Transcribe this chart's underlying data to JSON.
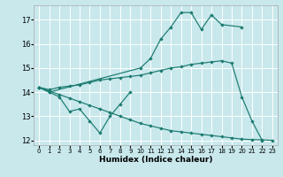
{
  "xlabel": "Humidex (Indice chaleur)",
  "background_color": "#c8e8ec",
  "grid_color": "#ffffff",
  "line_color": "#1a7a6e",
  "xlim": [
    -0.5,
    23.5
  ],
  "ylim": [
    11.8,
    17.6
  ],
  "yticks": [
    12,
    13,
    14,
    15,
    16,
    17
  ],
  "xticks": [
    0,
    1,
    2,
    3,
    4,
    5,
    6,
    7,
    8,
    9,
    10,
    11,
    12,
    13,
    14,
    15,
    16,
    17,
    18,
    19,
    20,
    21,
    22,
    23
  ],
  "s1_x": [
    0,
    1,
    2,
    3,
    4,
    5,
    6,
    7,
    8,
    9
  ],
  "s1_y": [
    14.2,
    14.0,
    13.8,
    13.2,
    13.3,
    12.8,
    12.3,
    13.0,
    13.5,
    14.0
  ],
  "s2_x": [
    0,
    1,
    10,
    11,
    12,
    13,
    14,
    15,
    16,
    17,
    18,
    20
  ],
  "s2_y": [
    14.2,
    14.0,
    15.0,
    15.4,
    16.2,
    16.7,
    17.3,
    17.3,
    16.6,
    17.2,
    16.8,
    16.7
  ],
  "s3_x": [
    0,
    1,
    2,
    3,
    4,
    5,
    6,
    7,
    8,
    9,
    10,
    11,
    12,
    13,
    14,
    15,
    16,
    17,
    18,
    19,
    20,
    21,
    22,
    23
  ],
  "s3_y": [
    14.2,
    14.1,
    14.2,
    14.25,
    14.3,
    14.4,
    14.5,
    14.55,
    14.6,
    14.65,
    14.7,
    14.8,
    14.9,
    15.0,
    15.05,
    15.15,
    15.2,
    15.25,
    15.3,
    15.2,
    13.8,
    12.8,
    12.0,
    null
  ],
  "s4_x": [
    0,
    1,
    2,
    3,
    4,
    5,
    6,
    7,
    8,
    9,
    10,
    11,
    12,
    13,
    14,
    15,
    16,
    17,
    18,
    19,
    20,
    21,
    22,
    23
  ],
  "s4_y": [
    14.2,
    14.05,
    13.9,
    13.75,
    13.6,
    13.45,
    13.3,
    13.15,
    13.0,
    12.85,
    12.7,
    12.6,
    12.5,
    12.4,
    12.35,
    12.3,
    12.25,
    12.2,
    12.15,
    12.1,
    12.05,
    12.03,
    12.02,
    12.0
  ]
}
